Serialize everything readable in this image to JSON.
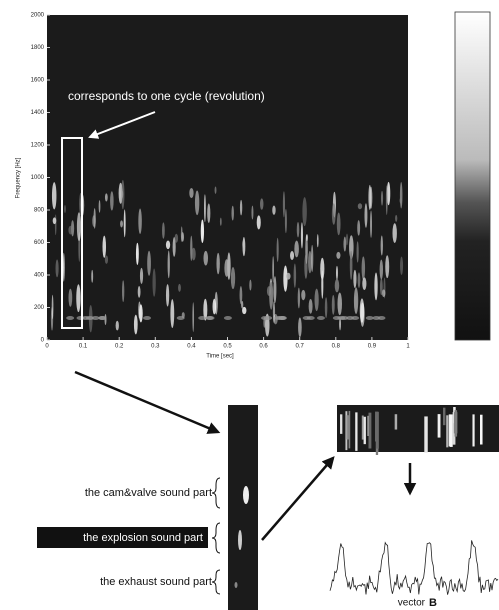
{
  "spectrogram": {
    "y_label": "Frequency [Hz]",
    "x_label": "Time [sec]",
    "xlim": [
      0,
      1
    ],
    "ylim": [
      0,
      2000
    ],
    "xticks": [
      0,
      0.1,
      0.2,
      0.3,
      0.4,
      0.5,
      0.6,
      0.7,
      0.8,
      0.9,
      1
    ],
    "yticks": [
      0,
      200,
      400,
      600,
      800,
      1000,
      1200,
      1400,
      1600,
      1800,
      2000
    ]
  },
  "annotation": "corresponds to one cycle (revolution)",
  "parts": [
    "the cam&valve sound part",
    "the explosion sound part",
    "the exhaust sound part"
  ],
  "vector": {
    "prefix": "vector",
    "name": "B"
  }
}
